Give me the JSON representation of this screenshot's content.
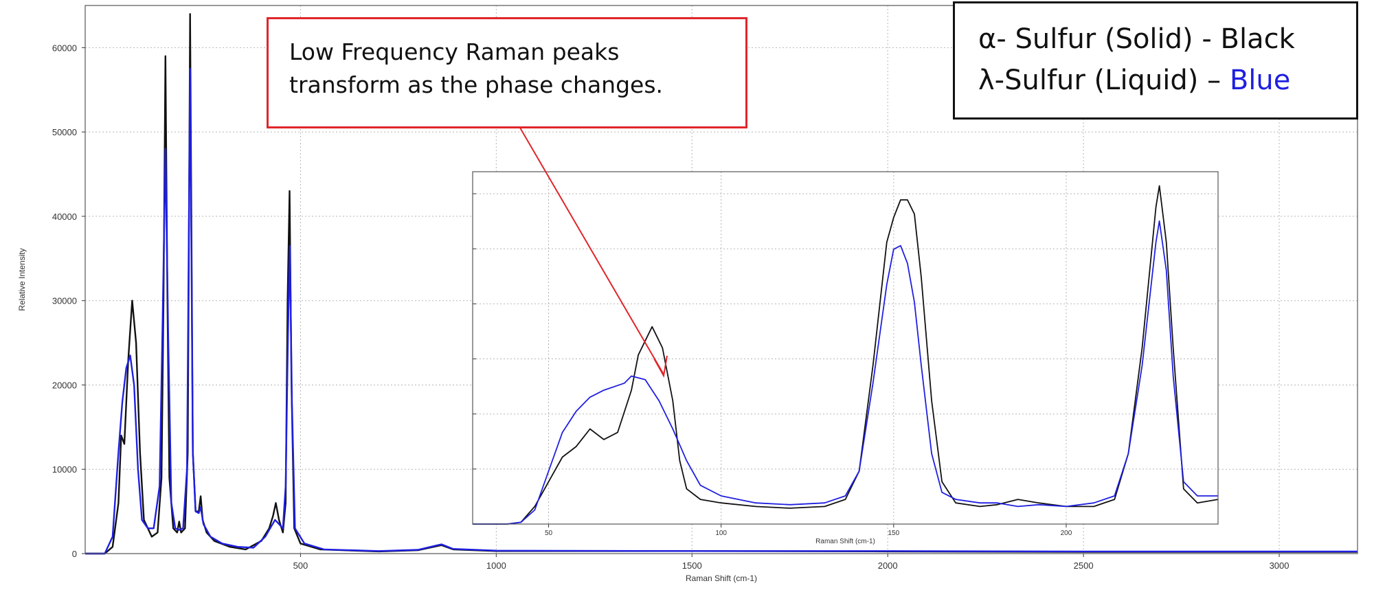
{
  "chart_data": [
    {
      "type": "line",
      "xlabel": "Raman Shift (cm-1)",
      "ylabel": "Relative Intensity",
      "xlim": [
        -50,
        3200
      ],
      "ylim": [
        0,
        65000
      ],
      "x_ticks": [
        500,
        1000,
        1500,
        2000,
        2500,
        3000
      ],
      "y_ticks": [
        0,
        10000,
        20000,
        30000,
        40000,
        50000,
        60000
      ],
      "grid": true,
      "series": [
        {
          "name": "α- Sulfur (Solid)",
          "color": "#111111",
          "points": [
            [
              -50,
              0
            ],
            [
              0,
              0
            ],
            [
              20,
              800
            ],
            [
              35,
              6000
            ],
            [
              42,
              14000
            ],
            [
              50,
              13000
            ],
            [
              60,
              23000
            ],
            [
              70,
              30000
            ],
            [
              80,
              25000
            ],
            [
              90,
              12000
            ],
            [
              100,
              4000
            ],
            [
              120,
              2000
            ],
            [
              135,
              2500
            ],
            [
              145,
              9000
            ],
            [
              150,
              30000
            ],
            [
              155,
              59000
            ],
            [
              160,
              30000
            ],
            [
              165,
              9000
            ],
            [
              175,
              3000
            ],
            [
              185,
              2500
            ],
            [
              190,
              3800
            ],
            [
              195,
              2500
            ],
            [
              205,
              3000
            ],
            [
              212,
              12000
            ],
            [
              218,
              64000
            ],
            [
              225,
              12000
            ],
            [
              232,
              5000
            ],
            [
              240,
              5000
            ],
            [
              245,
              6800
            ],
            [
              250,
              4000
            ],
            [
              260,
              2500
            ],
            [
              280,
              1500
            ],
            [
              320,
              800
            ],
            [
              360,
              500
            ],
            [
              400,
              1500
            ],
            [
              420,
              3000
            ],
            [
              430,
              4500
            ],
            [
              437,
              6000
            ],
            [
              445,
              4000
            ],
            [
              455,
              2500
            ],
            [
              462,
              6000
            ],
            [
              467,
              30000
            ],
            [
              472,
              43000
            ],
            [
              477,
              20000
            ],
            [
              484,
              3000
            ],
            [
              500,
              1200
            ],
            [
              550,
              500
            ],
            [
              700,
              250
            ],
            [
              800,
              400
            ],
            [
              860,
              1000
            ],
            [
              890,
              500
            ],
            [
              1000,
              300
            ],
            [
              1500,
              300
            ],
            [
              2000,
              250
            ],
            [
              2500,
              200
            ],
            [
              3200,
              200
            ]
          ]
        },
        {
          "name": "λ-Sulfur (Liquid)",
          "color": "#1f1fe0",
          "points": [
            [
              -50,
              0
            ],
            [
              0,
              0
            ],
            [
              20,
              2000
            ],
            [
              35,
              12000
            ],
            [
              45,
              18000
            ],
            [
              55,
              22000
            ],
            [
              65,
              23500
            ],
            [
              75,
              20000
            ],
            [
              85,
              10000
            ],
            [
              95,
              4000
            ],
            [
              110,
              3000
            ],
            [
              125,
              3000
            ],
            [
              140,
              8000
            ],
            [
              148,
              28000
            ],
            [
              155,
              48000
            ],
            [
              162,
              26000
            ],
            [
              170,
              6000
            ],
            [
              180,
              3000
            ],
            [
              190,
              2800
            ],
            [
              200,
              3000
            ],
            [
              210,
              10000
            ],
            [
              218,
              57500
            ],
            [
              225,
              12000
            ],
            [
              232,
              5000
            ],
            [
              240,
              4800
            ],
            [
              245,
              5500
            ],
            [
              252,
              3500
            ],
            [
              270,
              2000
            ],
            [
              300,
              1200
            ],
            [
              340,
              800
            ],
            [
              380,
              700
            ],
            [
              410,
              2000
            ],
            [
              425,
              3200
            ],
            [
              435,
              4000
            ],
            [
              445,
              3500
            ],
            [
              455,
              3000
            ],
            [
              462,
              8000
            ],
            [
              468,
              26000
            ],
            [
              473,
              36500
            ],
            [
              478,
              18000
            ],
            [
              486,
              3000
            ],
            [
              510,
              1200
            ],
            [
              560,
              500
            ],
            [
              700,
              300
            ],
            [
              800,
              450
            ],
            [
              860,
              1100
            ],
            [
              890,
              550
            ],
            [
              1000,
              350
            ],
            [
              1500,
              300
            ],
            [
              2000,
              300
            ],
            [
              2500,
              250
            ],
            [
              3200,
              250
            ]
          ]
        }
      ]
    },
    {
      "type": "line",
      "xlabel": "Raman Shift (cm-1)",
      "xlim": [
        28,
        244
      ],
      "ylim": [
        0,
        1
      ],
      "x_ticks": [
        50,
        100,
        150,
        200
      ],
      "grid": true,
      "series": [
        {
          "name": "α- Sulfur (Solid)",
          "color": "#111111",
          "points": [
            [
              28,
              0
            ],
            [
              38,
              0
            ],
            [
              42,
              0.005
            ],
            [
              46,
              0.05
            ],
            [
              50,
              0.12
            ],
            [
              54,
              0.19
            ],
            [
              58,
              0.22
            ],
            [
              62,
              0.27
            ],
            [
              66,
              0.24
            ],
            [
              70,
              0.26
            ],
            [
              74,
              0.38
            ],
            [
              76,
              0.48
            ],
            [
              80,
              0.56
            ],
            [
              83,
              0.5
            ],
            [
              86,
              0.35
            ],
            [
              88,
              0.18
            ],
            [
              90,
              0.1
            ],
            [
              94,
              0.07
            ],
            [
              100,
              0.06
            ],
            [
              110,
              0.05
            ],
            [
              120,
              0.045
            ],
            [
              130,
              0.05
            ],
            [
              136,
              0.07
            ],
            [
              140,
              0.15
            ],
            [
              144,
              0.45
            ],
            [
              148,
              0.8
            ],
            [
              150,
              0.87
            ],
            [
              152,
              0.92
            ],
            [
              154,
              0.92
            ],
            [
              156,
              0.88
            ],
            [
              158,
              0.7
            ],
            [
              161,
              0.35
            ],
            [
              164,
              0.12
            ],
            [
              168,
              0.06
            ],
            [
              175,
              0.05
            ],
            [
              180,
              0.055
            ],
            [
              186,
              0.07
            ],
            [
              192,
              0.06
            ],
            [
              200,
              0.05
            ],
            [
              208,
              0.05
            ],
            [
              214,
              0.07
            ],
            [
              218,
              0.2
            ],
            [
              222,
              0.5
            ],
            [
              226,
              0.9
            ],
            [
              227,
              0.96
            ],
            [
              229,
              0.8
            ],
            [
              231,
              0.5
            ],
            [
              234,
              0.1
            ],
            [
              238,
              0.06
            ],
            [
              244,
              0.07
            ]
          ]
        },
        {
          "name": "λ-Sulfur (Liquid)",
          "color": "#1f1fe0",
          "points": [
            [
              28,
              0
            ],
            [
              38,
              0
            ],
            [
              42,
              0.005
            ],
            [
              46,
              0.04
            ],
            [
              50,
              0.15
            ],
            [
              54,
              0.26
            ],
            [
              58,
              0.32
            ],
            [
              62,
              0.36
            ],
            [
              66,
              0.38
            ],
            [
              72,
              0.4
            ],
            [
              74,
              0.42
            ],
            [
              78,
              0.41
            ],
            [
              82,
              0.35
            ],
            [
              86,
              0.27
            ],
            [
              90,
              0.18
            ],
            [
              94,
              0.11
            ],
            [
              100,
              0.08
            ],
            [
              110,
              0.06
            ],
            [
              120,
              0.055
            ],
            [
              130,
              0.06
            ],
            [
              136,
              0.08
            ],
            [
              140,
              0.15
            ],
            [
              144,
              0.4
            ],
            [
              148,
              0.68
            ],
            [
              150,
              0.78
            ],
            [
              152,
              0.79
            ],
            [
              154,
              0.74
            ],
            [
              156,
              0.63
            ],
            [
              158,
              0.45
            ],
            [
              161,
              0.2
            ],
            [
              164,
              0.09
            ],
            [
              168,
              0.07
            ],
            [
              175,
              0.06
            ],
            [
              180,
              0.06
            ],
            [
              186,
              0.05
            ],
            [
              192,
              0.055
            ],
            [
              200,
              0.05
            ],
            [
              208,
              0.06
            ],
            [
              214,
              0.08
            ],
            [
              218,
              0.2
            ],
            [
              222,
              0.45
            ],
            [
              226,
              0.8
            ],
            [
              227,
              0.86
            ],
            [
              229,
              0.72
            ],
            [
              231,
              0.42
            ],
            [
              234,
              0.12
            ],
            [
              238,
              0.08
            ],
            [
              244,
              0.08
            ]
          ]
        }
      ]
    }
  ],
  "callout": {
    "text_line1": "Low Frequency Raman peaks",
    "text_line2": "transform as the phase changes."
  },
  "legend": {
    "line1": "α- Sulfur (Solid) - Black",
    "line2_prefix": "λ-Sulfur (Liquid) – ",
    "line2_color_word": "Blue",
    "black_color": "#111111",
    "blue_color": "#1f1fe0"
  },
  "colors": {
    "callout_border": "#e0252a",
    "arrow": "#e0252a",
    "grid": "#b5b5b5"
  }
}
